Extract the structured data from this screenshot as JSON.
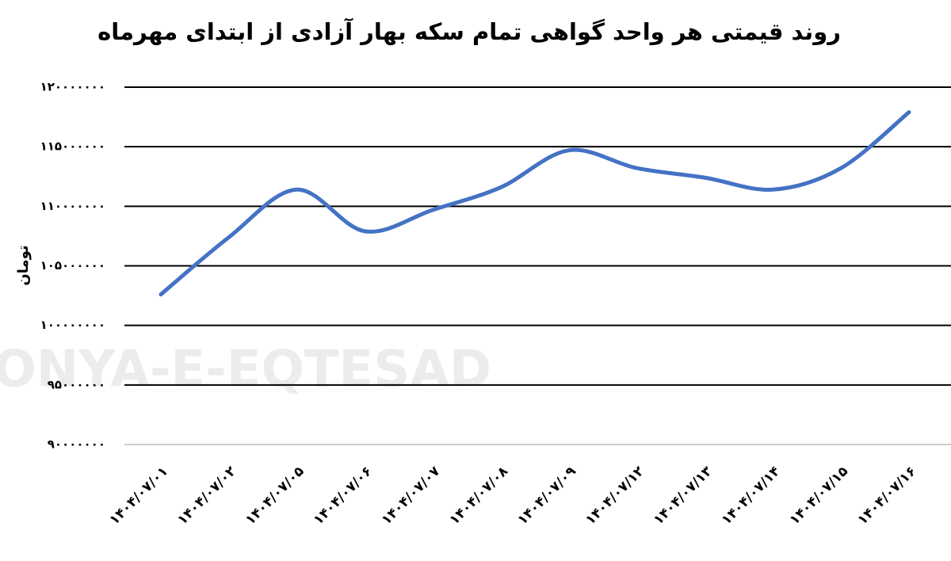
{
  "chart_data": {
    "type": "line",
    "title": "روند قیمتی هر واحد گواهی تمام سکه بهار آزادی از ابتدای مهرماه",
    "y_label": "تومان",
    "watermark": "DONYA-E-EQTESAD",
    "categories": [
      "۱۴۰۴/۰۷/۰۱",
      "۱۴۰۴/۰۷/۰۲",
      "۱۴۰۴/۰۷/۰۵",
      "۱۴۰۴/۰۷/۰۶",
      "۱۴۰۴/۰۷/۰۷",
      "۱۴۰۴/۰۷/۰۸",
      "۱۴۰۴/۰۷/۰۹",
      "۱۴۰۴/۰۷/۱۲",
      "۱۴۰۴/۰۷/۱۳",
      "۱۴۰۴/۰۷/۱۴",
      "۱۴۰۴/۰۷/۱۵",
      "۱۴۰۴/۰۷/۱۶"
    ],
    "values": [
      102600000,
      107400000,
      111400000,
      107900000,
      109700000,
      111600000,
      114700000,
      113200000,
      112400000,
      111400000,
      113200000,
      117900000
    ],
    "color": "#4472c4",
    "smooth": true,
    "grid": true,
    "ylim": [
      90000000,
      120000000
    ],
    "yticks": [
      {
        "value": 90000000,
        "label": "۹۰۰۰۰۰۰۰"
      },
      {
        "value": 95000000,
        "label": "۹۵۰۰۰۰۰۰"
      },
      {
        "value": 100000000,
        "label": "۱۰۰۰۰۰۰۰۰"
      },
      {
        "value": 105000000,
        "label": "۱۰۵۰۰۰۰۰۰"
      },
      {
        "value": 110000000,
        "label": "۱۱۰۰۰۰۰۰۰"
      },
      {
        "value": 115000000,
        "label": "۱۱۵۰۰۰۰۰۰"
      },
      {
        "value": 120000000,
        "label": "۱۲۰۰۰۰۰۰۰"
      }
    ]
  }
}
